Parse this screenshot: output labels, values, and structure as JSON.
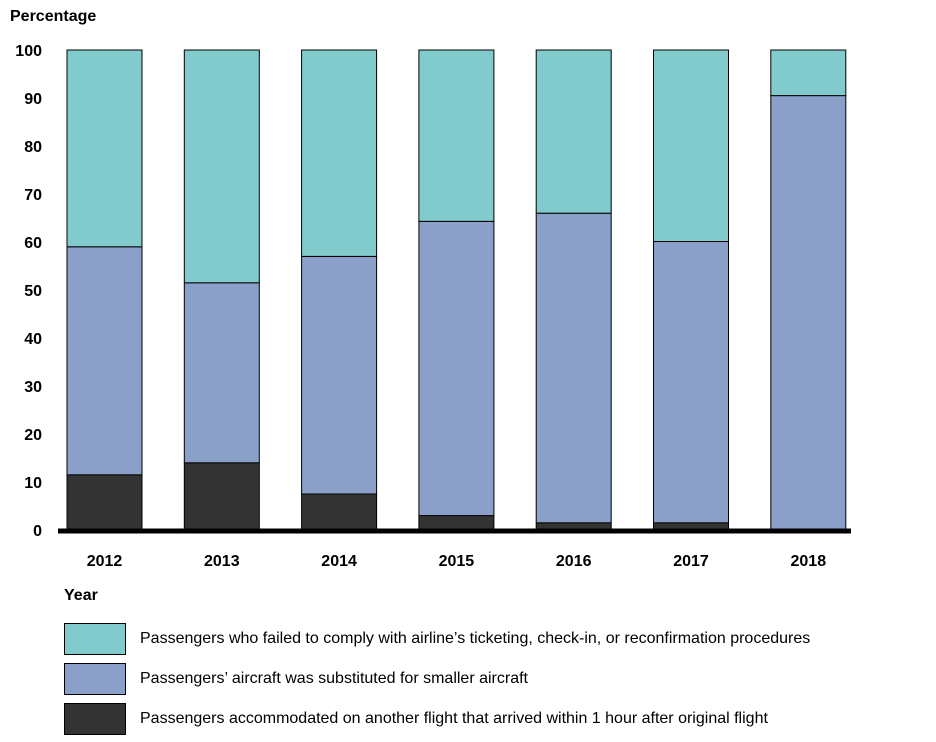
{
  "chart_data": {
    "type": "bar",
    "stacked": true,
    "ylabel": "Percentage",
    "xlabel": "Year",
    "ylim": [
      0,
      100
    ],
    "yticks": [
      0,
      10,
      20,
      30,
      40,
      50,
      60,
      70,
      80,
      90,
      100
    ],
    "categories": [
      "2012",
      "2013",
      "2014",
      "2015",
      "2016",
      "2017",
      "2018"
    ],
    "series": [
      {
        "name": "Passengers accommodated on another flight that arrived within 1 hour after original flight",
        "color": "#333333",
        "values": [
          11.5,
          14,
          7.5,
          3,
          1.5,
          1.5,
          0.2
        ]
      },
      {
        "name": "Passengers’ aircraft was substituted for smaller aircraft",
        "color": "#8aa0c8",
        "values": [
          47.5,
          37.5,
          49.5,
          61.3,
          64.5,
          58.6,
          90.3
        ]
      },
      {
        "name": "Passengers who failed to comply with airline’s ticketing, check-in, or reconfirmation procedures",
        "color": "#82cbcd",
        "values": [
          41,
          48.5,
          43,
          35.7,
          34,
          39.9,
          9.5
        ]
      }
    ],
    "grid": false,
    "legend_position": "bottom"
  }
}
